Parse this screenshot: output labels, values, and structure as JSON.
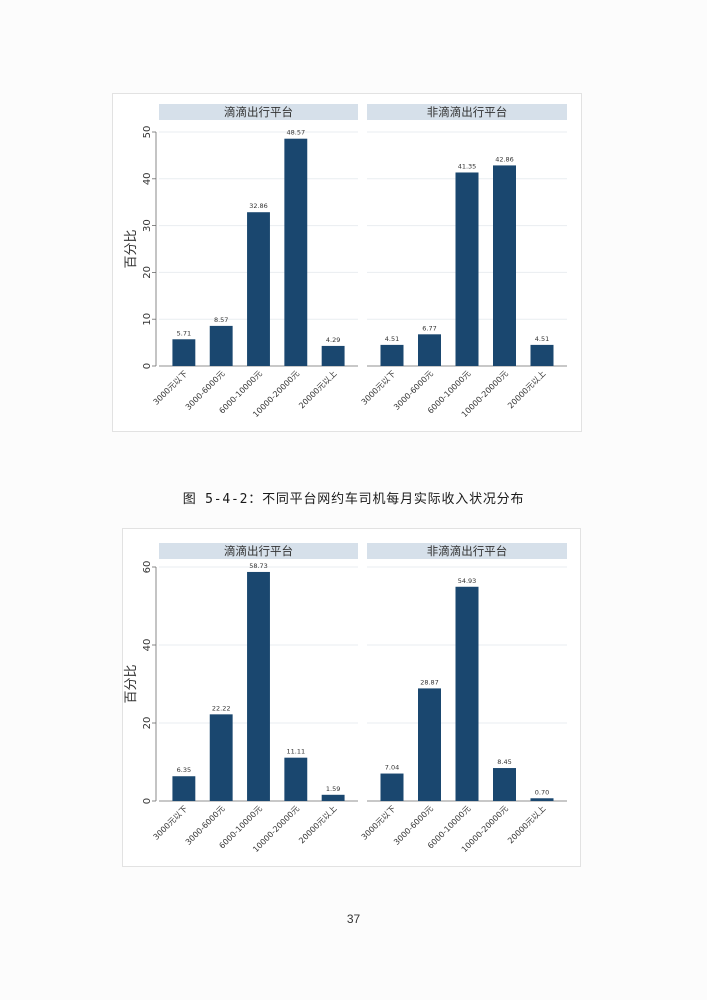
{
  "page": {
    "caption": "图 5-4-2：不同平台网约车司机每月实际收入状况分布",
    "page_number": "37"
  },
  "colors": {
    "page_background": "#fcfcfc",
    "bar": "#1a476f",
    "panel_header": "#d6e0ea",
    "grid": "#e9edf1",
    "axis": "#6b6b6b",
    "text": "#333333"
  },
  "chart_data": [
    {
      "type": "bar",
      "ylabel": "百分比",
      "ylim": [
        0,
        50
      ],
      "yticks": [
        0,
        10,
        20,
        30,
        40,
        50
      ],
      "grid": true,
      "categories": [
        "3000元以下",
        "3000-6000元",
        "6000-10000元",
        "10000-20000元",
        "20000元以上"
      ],
      "panels": [
        {
          "title": "滴滴出行平台",
          "values": [
            5.71,
            8.57,
            32.86,
            48.57,
            4.29
          ],
          "value_labels": [
            "5.71",
            "8.57",
            "32.86",
            "48.57",
            "4.29"
          ]
        },
        {
          "title": "非滴滴出行平台",
          "values": [
            4.51,
            6.77,
            41.35,
            42.86,
            4.51
          ],
          "value_labels": [
            "4.51",
            "6.77",
            "41.35",
            "42.86",
            "4.51"
          ]
        }
      ]
    },
    {
      "type": "bar",
      "ylabel": "百分比",
      "ylim": [
        0,
        60
      ],
      "yticks": [
        0,
        20,
        40,
        60
      ],
      "grid": true,
      "categories": [
        "3000元以下",
        "3000-6000元",
        "6000-10000元",
        "10000-20000元",
        "20000元以上"
      ],
      "panels": [
        {
          "title": "滴滴出行平台",
          "values": [
            6.35,
            22.22,
            58.73,
            11.11,
            1.59
          ],
          "value_labels": [
            "6.35",
            "22.22",
            "58.73",
            "11.11",
            "1.59"
          ]
        },
        {
          "title": "非滴滴出行平台",
          "values": [
            7.04,
            28.87,
            54.93,
            8.45,
            0.7
          ],
          "value_labels": [
            "7.04",
            "28.87",
            "54.93",
            "8.45",
            "0.70"
          ]
        }
      ]
    }
  ]
}
